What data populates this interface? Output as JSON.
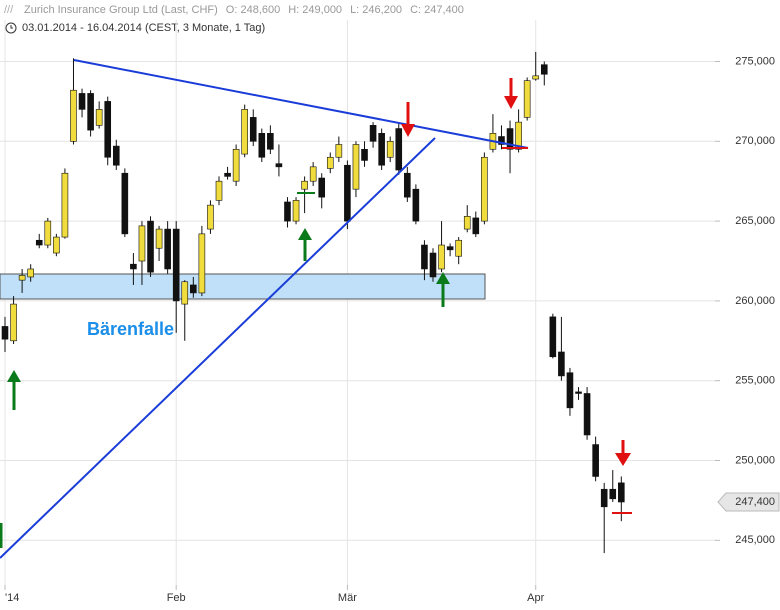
{
  "chart_data": {
    "type": "candlestick",
    "title": "Zurich Insurance Group Ltd (Last, CHF)",
    "header": [
      "O: 248,600",
      "H: 249,000",
      "L: 246,200",
      "C: 247,400"
    ],
    "subtitle": "03.01.2014 - 16.04.2014 (CEST, 3 Monate, 1 Tag)",
    "annotation": "Bärenfalle",
    "price_label": {
      "value": 247400,
      "label": "247,400"
    },
    "up_color": "#f0dc3c",
    "down_color": "#111111",
    "grid": true,
    "ylim": [
      242200,
      277600
    ],
    "yticks": [
      {
        "value": 245000,
        "label": "245,000"
      },
      {
        "value": 250000,
        "label": "250,000"
      },
      {
        "value": 255000,
        "label": "255,000"
      },
      {
        "value": 260000,
        "label": "260,000"
      },
      {
        "value": 265000,
        "label": "265,000"
      },
      {
        "value": 270000,
        "label": "270,000"
      },
      {
        "value": 275000,
        "label": "275,000"
      }
    ],
    "xticks": [
      {
        "value": 0,
        "label": "'14"
      },
      {
        "value": 20,
        "label": "Feb"
      },
      {
        "value": 40,
        "label": "Mär"
      },
      {
        "value": 62,
        "label": "Apr"
      }
    ],
    "open": [
      258400,
      257500,
      261300,
      261500,
      263800,
      263500,
      263000,
      264000,
      270000,
      273000,
      273000,
      271000,
      272500,
      269700,
      268000,
      262300,
      262500,
      265000,
      263300,
      264500,
      264500,
      259800,
      261000,
      260500,
      264500,
      266300,
      268000,
      267500,
      269200,
      271500,
      270500,
      270500,
      268600,
      266200,
      265000,
      267000,
      267500,
      267700,
      268300,
      269000,
      268500,
      267000,
      269500,
      271000,
      270500,
      269000,
      270800,
      268000,
      267000,
      263500,
      263000,
      262000,
      263400,
      262800,
      264500,
      265200,
      265000,
      269500,
      270300,
      270800,
      269500,
      271500,
      273900,
      274800,
      259000,
      256800,
      255500,
      254300,
      254200,
      251000,
      248200,
      248200,
      248600
    ],
    "high": [
      259000,
      260300,
      262000,
      262300,
      264200,
      265200,
      264200,
      268300,
      275200,
      273300,
      273200,
      272500,
      272800,
      270100,
      268300,
      263000,
      265000,
      265300,
      264700,
      265000,
      265000,
      261300,
      261500,
      264700,
      266300,
      267800,
      268400,
      269800,
      272300,
      272000,
      270800,
      271000,
      269800,
      266500,
      266500,
      267800,
      268700,
      268000,
      269300,
      270300,
      268800,
      270000,
      270000,
      271200,
      270800,
      270300,
      271200,
      268400,
      267300,
      263800,
      263300,
      265000,
      263600,
      264000,
      266000,
      265600,
      269300,
      271700,
      271000,
      271300,
      272000,
      274000,
      275600,
      275000,
      259200,
      259000,
      255800,
      254600,
      254600,
      251500,
      248600,
      249400,
      249000
    ],
    "low": [
      256800,
      257300,
      260500,
      261200,
      263300,
      263300,
      262800,
      263900,
      269800,
      271500,
      270300,
      270800,
      268500,
      268200,
      264000,
      261000,
      261000,
      261500,
      262500,
      261700,
      258000,
      257500,
      260200,
      260300,
      264200,
      266000,
      267600,
      267200,
      269000,
      269700,
      268700,
      269200,
      267800,
      264600,
      264800,
      265500,
      267200,
      265800,
      268000,
      268700,
      264500,
      266500,
      268400,
      269600,
      268200,
      268700,
      267900,
      266200,
      264800,
      261300,
      261200,
      261800,
      262800,
      262300,
      264300,
      264000,
      264800,
      269300,
      269500,
      268000,
      269300,
      271300,
      273800,
      273500,
      256400,
      255000,
      252800,
      253800,
      251300,
      248700,
      244200,
      247400,
      246200
    ],
    "close": [
      257600,
      259800,
      261600,
      262000,
      263500,
      265000,
      264000,
      268000,
      273200,
      272000,
      270700,
      272000,
      269000,
      268500,
      264200,
      262000,
      264700,
      261800,
      264500,
      262000,
      260000,
      261200,
      260500,
      264200,
      266000,
      267500,
      267800,
      269500,
      272000,
      270000,
      269000,
      269500,
      268400,
      265000,
      266300,
      267500,
      268400,
      266500,
      269000,
      269800,
      265000,
      269800,
      268800,
      270000,
      268500,
      270000,
      268200,
      266500,
      265000,
      262000,
      261500,
      263500,
      263200,
      263800,
      265300,
      264200,
      269000,
      270500,
      269800,
      269500,
      271200,
      273800,
      274100,
      274200,
      256500,
      255300,
      253300,
      254200,
      251600,
      249000,
      247100,
      247600,
      247400
    ]
  }
}
